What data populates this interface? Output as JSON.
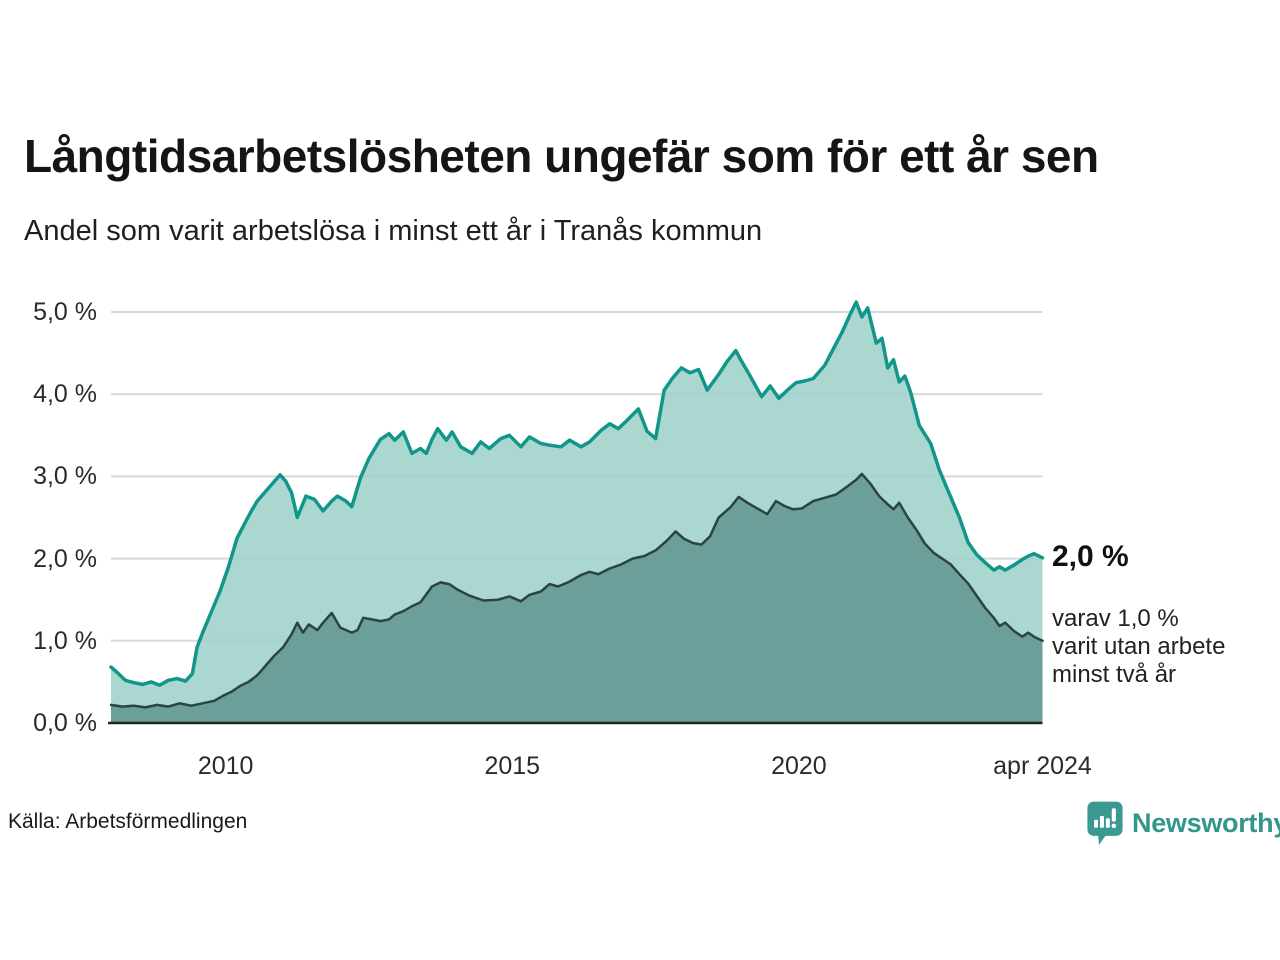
{
  "header": {
    "title": "Långtidsarbetslösheten ungefär som för ett år sen",
    "subtitle": "Andel som varit arbetslösa i minst ett år i Tranås kommun"
  },
  "annotations": {
    "end_value_label": "2,0 %",
    "sub_label_lines": [
      "varav 1,0 %",
      "varit utan arbete",
      "minst två år"
    ]
  },
  "footer": {
    "source": "Källa: Arbetsförmedlingen",
    "brand": "Newsworthy",
    "brand_icon": "newsworthy-speech-bubble-bar-chart-icon"
  },
  "colors": {
    "series1_line": "#12968a",
    "series1_fill": "#9fd2cb",
    "series2_line": "#2b443f",
    "series2_fill": "#639792",
    "gridline": "#d5d9de",
    "axis_line": "#222222",
    "brand_teal": "#3a9a91",
    "text": "#1a1a1a"
  },
  "chart_data": {
    "type": "area",
    "title": "Långtidsarbetslösheten ungefär som för ett år sen",
    "subtitle": "Andel som varit arbetslösa i minst ett år i Tranås kommun",
    "xlabel": "",
    "ylabel": "",
    "grid": "horizontal-only",
    "legend_position": "none",
    "x_axis": {
      "range": [
        2008.0,
        2024.25
      ],
      "ticks": [
        {
          "value": 2010,
          "label": "2010"
        },
        {
          "value": 2015,
          "label": "2015"
        },
        {
          "value": 2020,
          "label": "2020"
        },
        {
          "value": 2024.25,
          "label": "apr 2024"
        }
      ]
    },
    "y_axis": {
      "range": [
        0,
        5.2
      ],
      "unit": "%",
      "ticks": [
        {
          "value": 0,
          "label": "0,0 %"
        },
        {
          "value": 1,
          "label": "1,0 %"
        },
        {
          "value": 2,
          "label": "2,0 %"
        },
        {
          "value": 3,
          "label": "3,0 %"
        },
        {
          "value": 4,
          "label": "4,0 %"
        },
        {
          "value": 5,
          "label": "5,0 %"
        }
      ]
    },
    "series": [
      {
        "name": "Arbetslösa minst ett år",
        "end_label": "2,0 %",
        "points": [
          [
            2008.0,
            0.68
          ],
          [
            2008.1,
            0.62
          ],
          [
            2008.25,
            0.52
          ],
          [
            2008.4,
            0.49
          ],
          [
            2008.55,
            0.47
          ],
          [
            2008.7,
            0.5
          ],
          [
            2008.85,
            0.46
          ],
          [
            2009.0,
            0.52
          ],
          [
            2009.15,
            0.54
          ],
          [
            2009.3,
            0.51
          ],
          [
            2009.42,
            0.6
          ],
          [
            2009.5,
            0.92
          ],
          [
            2009.6,
            1.1
          ],
          [
            2009.75,
            1.35
          ],
          [
            2009.9,
            1.6
          ],
          [
            2010.05,
            1.9
          ],
          [
            2010.2,
            2.25
          ],
          [
            2010.35,
            2.45
          ],
          [
            2010.45,
            2.58
          ],
          [
            2010.55,
            2.7
          ],
          [
            2010.65,
            2.78
          ],
          [
            2010.8,
            2.9
          ],
          [
            2010.95,
            3.02
          ],
          [
            2011.05,
            2.94
          ],
          [
            2011.15,
            2.8
          ],
          [
            2011.25,
            2.5
          ],
          [
            2011.4,
            2.76
          ],
          [
            2011.55,
            2.72
          ],
          [
            2011.7,
            2.58
          ],
          [
            2011.85,
            2.7
          ],
          [
            2011.95,
            2.76
          ],
          [
            2012.1,
            2.7
          ],
          [
            2012.2,
            2.63
          ],
          [
            2012.35,
            2.98
          ],
          [
            2012.5,
            3.22
          ],
          [
            2012.7,
            3.45
          ],
          [
            2012.85,
            3.52
          ],
          [
            2012.95,
            3.44
          ],
          [
            2013.1,
            3.54
          ],
          [
            2013.25,
            3.28
          ],
          [
            2013.4,
            3.34
          ],
          [
            2013.5,
            3.28
          ],
          [
            2013.6,
            3.45
          ],
          [
            2013.7,
            3.58
          ],
          [
            2013.85,
            3.44
          ],
          [
            2013.95,
            3.54
          ],
          [
            2014.1,
            3.36
          ],
          [
            2014.3,
            3.28
          ],
          [
            2014.45,
            3.42
          ],
          [
            2014.6,
            3.34
          ],
          [
            2014.8,
            3.46
          ],
          [
            2014.95,
            3.5
          ],
          [
            2015.15,
            3.36
          ],
          [
            2015.3,
            3.48
          ],
          [
            2015.5,
            3.4
          ],
          [
            2015.65,
            3.38
          ],
          [
            2015.85,
            3.36
          ],
          [
            2016.0,
            3.44
          ],
          [
            2016.2,
            3.36
          ],
          [
            2016.35,
            3.42
          ],
          [
            2016.55,
            3.56
          ],
          [
            2016.7,
            3.64
          ],
          [
            2016.85,
            3.58
          ],
          [
            2017.0,
            3.68
          ],
          [
            2017.2,
            3.82
          ],
          [
            2017.35,
            3.55
          ],
          [
            2017.5,
            3.46
          ],
          [
            2017.65,
            4.05
          ],
          [
            2017.8,
            4.2
          ],
          [
            2017.95,
            4.32
          ],
          [
            2018.1,
            4.26
          ],
          [
            2018.25,
            4.3
          ],
          [
            2018.4,
            4.05
          ],
          [
            2018.6,
            4.24
          ],
          [
            2018.75,
            4.4
          ],
          [
            2018.9,
            4.53
          ],
          [
            2019.0,
            4.4
          ],
          [
            2019.15,
            4.22
          ],
          [
            2019.35,
            3.97
          ],
          [
            2019.5,
            4.1
          ],
          [
            2019.65,
            3.95
          ],
          [
            2019.8,
            4.05
          ],
          [
            2019.95,
            4.14
          ],
          [
            2020.1,
            4.16
          ],
          [
            2020.25,
            4.19
          ],
          [
            2020.45,
            4.35
          ],
          [
            2020.6,
            4.55
          ],
          [
            2020.75,
            4.75
          ],
          [
            2020.9,
            4.98
          ],
          [
            2021.0,
            5.12
          ],
          [
            2021.1,
            4.94
          ],
          [
            2021.2,
            5.05
          ],
          [
            2021.35,
            4.62
          ],
          [
            2021.45,
            4.68
          ],
          [
            2021.55,
            4.32
          ],
          [
            2021.65,
            4.42
          ],
          [
            2021.75,
            4.15
          ],
          [
            2021.85,
            4.22
          ],
          [
            2021.95,
            4.02
          ],
          [
            2022.1,
            3.62
          ],
          [
            2022.3,
            3.4
          ],
          [
            2022.45,
            3.08
          ],
          [
            2022.6,
            2.83
          ],
          [
            2022.8,
            2.5
          ],
          [
            2022.95,
            2.2
          ],
          [
            2023.1,
            2.05
          ],
          [
            2023.25,
            1.95
          ],
          [
            2023.4,
            1.86
          ],
          [
            2023.5,
            1.9
          ],
          [
            2023.6,
            1.86
          ],
          [
            2023.75,
            1.92
          ],
          [
            2023.9,
            1.99
          ],
          [
            2024.0,
            2.03
          ],
          [
            2024.1,
            2.06
          ],
          [
            2024.25,
            2.01
          ]
        ]
      },
      {
        "name": "Utan arbete minst två år",
        "end_label": "1,0 %",
        "points": [
          [
            2008.0,
            0.22
          ],
          [
            2008.2,
            0.2
          ],
          [
            2008.4,
            0.21
          ],
          [
            2008.6,
            0.19
          ],
          [
            2008.8,
            0.22
          ],
          [
            2009.0,
            0.2
          ],
          [
            2009.2,
            0.24
          ],
          [
            2009.4,
            0.21
          ],
          [
            2009.6,
            0.24
          ],
          [
            2009.8,
            0.27
          ],
          [
            2009.95,
            0.33
          ],
          [
            2010.1,
            0.38
          ],
          [
            2010.25,
            0.45
          ],
          [
            2010.4,
            0.5
          ],
          [
            2010.55,
            0.58
          ],
          [
            2010.7,
            0.7
          ],
          [
            2010.85,
            0.82
          ],
          [
            2011.0,
            0.92
          ],
          [
            2011.15,
            1.08
          ],
          [
            2011.25,
            1.22
          ],
          [
            2011.35,
            1.1
          ],
          [
            2011.45,
            1.2
          ],
          [
            2011.6,
            1.13
          ],
          [
            2011.7,
            1.22
          ],
          [
            2011.85,
            1.34
          ],
          [
            2012.0,
            1.16
          ],
          [
            2012.2,
            1.1
          ],
          [
            2012.3,
            1.13
          ],
          [
            2012.4,
            1.28
          ],
          [
            2012.55,
            1.26
          ],
          [
            2012.7,
            1.24
          ],
          [
            2012.85,
            1.26
          ],
          [
            2012.95,
            1.32
          ],
          [
            2013.1,
            1.36
          ],
          [
            2013.25,
            1.42
          ],
          [
            2013.4,
            1.47
          ],
          [
            2013.6,
            1.66
          ],
          [
            2013.75,
            1.71
          ],
          [
            2013.9,
            1.69
          ],
          [
            2014.05,
            1.62
          ],
          [
            2014.25,
            1.55
          ],
          [
            2014.5,
            1.49
          ],
          [
            2014.75,
            1.5
          ],
          [
            2014.95,
            1.54
          ],
          [
            2015.15,
            1.48
          ],
          [
            2015.3,
            1.56
          ],
          [
            2015.5,
            1.6
          ],
          [
            2015.65,
            1.69
          ],
          [
            2015.8,
            1.66
          ],
          [
            2016.0,
            1.72
          ],
          [
            2016.2,
            1.8
          ],
          [
            2016.35,
            1.84
          ],
          [
            2016.5,
            1.81
          ],
          [
            2016.7,
            1.88
          ],
          [
            2016.9,
            1.93
          ],
          [
            2017.1,
            2.0
          ],
          [
            2017.3,
            2.03
          ],
          [
            2017.5,
            2.1
          ],
          [
            2017.7,
            2.22
          ],
          [
            2017.85,
            2.33
          ],
          [
            2018.0,
            2.24
          ],
          [
            2018.15,
            2.19
          ],
          [
            2018.3,
            2.17
          ],
          [
            2018.45,
            2.27
          ],
          [
            2018.6,
            2.5
          ],
          [
            2018.8,
            2.62
          ],
          [
            2018.95,
            2.75
          ],
          [
            2019.1,
            2.68
          ],
          [
            2019.3,
            2.6
          ],
          [
            2019.45,
            2.54
          ],
          [
            2019.6,
            2.7
          ],
          [
            2019.75,
            2.64
          ],
          [
            2019.9,
            2.6
          ],
          [
            2020.05,
            2.61
          ],
          [
            2020.25,
            2.7
          ],
          [
            2020.45,
            2.74
          ],
          [
            2020.65,
            2.78
          ],
          [
            2020.85,
            2.88
          ],
          [
            2021.0,
            2.96
          ],
          [
            2021.1,
            3.03
          ],
          [
            2021.25,
            2.91
          ],
          [
            2021.4,
            2.76
          ],
          [
            2021.55,
            2.66
          ],
          [
            2021.65,
            2.6
          ],
          [
            2021.75,
            2.68
          ],
          [
            2021.9,
            2.5
          ],
          [
            2022.05,
            2.35
          ],
          [
            2022.2,
            2.18
          ],
          [
            2022.35,
            2.07
          ],
          [
            2022.5,
            2.0
          ],
          [
            2022.65,
            1.93
          ],
          [
            2022.8,
            1.81
          ],
          [
            2022.95,
            1.7
          ],
          [
            2023.1,
            1.55
          ],
          [
            2023.25,
            1.4
          ],
          [
            2023.4,
            1.28
          ],
          [
            2023.5,
            1.18
          ],
          [
            2023.6,
            1.22
          ],
          [
            2023.75,
            1.12
          ],
          [
            2023.9,
            1.05
          ],
          [
            2024.0,
            1.1
          ],
          [
            2024.1,
            1.05
          ],
          [
            2024.25,
            1.0
          ]
        ]
      }
    ]
  }
}
